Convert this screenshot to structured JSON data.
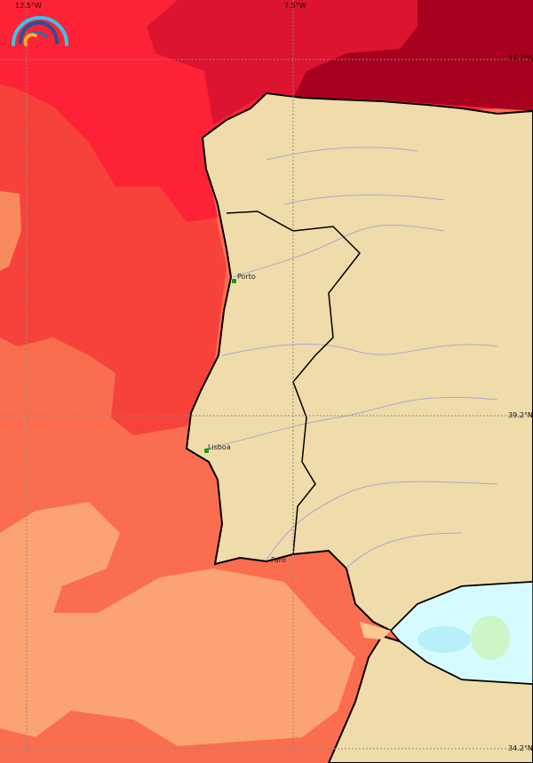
{
  "map": {
    "graticule": {
      "longitudes": [
        "12.5°W",
        "7.5°W"
      ],
      "latitudes": [
        "44.2°N",
        "39.2°N",
        "34.2°N"
      ]
    },
    "cities": [
      "Porto",
      "Lisboa",
      "Faro"
    ],
    "logo": "rainbow-arc-logo",
    "colors": {
      "land": "#efdcaa",
      "rivers": "#a8a8d0",
      "coast": "#000000",
      "sea_darkest": "#a8001f",
      "sea_dark": "#dc1430",
      "sea_red": "#fe2236",
      "sea_red_light": "#f7423b",
      "sea_orange": "#fb6d4f",
      "sea_salmon": "#fca373",
      "mediterranean": "#d6fbff",
      "mediterranean_light": "#b8f0f8",
      "mediterranean_green": "#ccf5c8"
    }
  }
}
